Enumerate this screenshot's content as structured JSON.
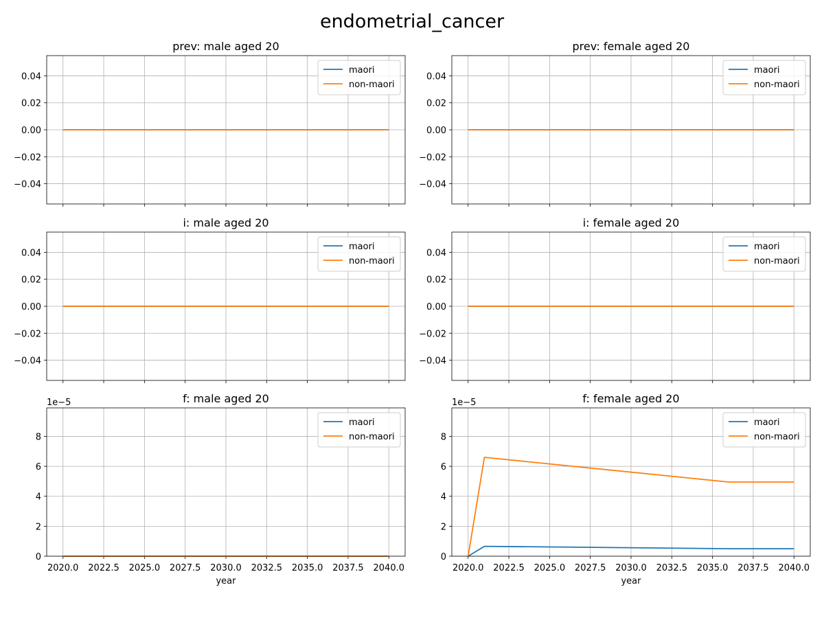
{
  "figure": {
    "title": "endometrial_cancer"
  },
  "colors": {
    "maori": "#1f77b4",
    "non_maori": "#ff7f0e",
    "grid": "#b0b0b0",
    "axes": "#000000",
    "background": "#ffffff"
  },
  "chart_data": [
    {
      "type": "line",
      "title": "prev: male aged 20",
      "xlabel": "",
      "ylabel": "",
      "xlim": [
        2019,
        2041
      ],
      "ylim": [
        -0.055,
        0.055
      ],
      "yticks": [
        -0.04,
        -0.02,
        0.0,
        0.02,
        0.04
      ],
      "ytick_labels": [
        "−0.04",
        "−0.02",
        "0.00",
        "0.02",
        "0.04"
      ],
      "xticks": [
        2020.0,
        2022.5,
        2025.0,
        2027.5,
        2030.0,
        2032.5,
        2035.0,
        2037.5,
        2040.0
      ],
      "xtick_labels": [],
      "y_offset_label": "",
      "grid": true,
      "legend": "upper right",
      "series": [
        {
          "name": "maori",
          "x": [
            2020,
            2040
          ],
          "y": [
            0,
            0
          ]
        },
        {
          "name": "non-maori",
          "x": [
            2020,
            2040
          ],
          "y": [
            0,
            0
          ]
        }
      ]
    },
    {
      "type": "line",
      "title": "prev: female aged 20",
      "xlabel": "",
      "ylabel": "",
      "xlim": [
        2019,
        2041
      ],
      "ylim": [
        -0.055,
        0.055
      ],
      "yticks": [
        -0.04,
        -0.02,
        0.0,
        0.02,
        0.04
      ],
      "ytick_labels": [
        "−0.04",
        "−0.02",
        "0.00",
        "0.02",
        "0.04"
      ],
      "xticks": [
        2020.0,
        2022.5,
        2025.0,
        2027.5,
        2030.0,
        2032.5,
        2035.0,
        2037.5,
        2040.0
      ],
      "xtick_labels": [],
      "y_offset_label": "",
      "grid": true,
      "legend": "upper right",
      "series": [
        {
          "name": "maori",
          "x": [
            2020,
            2040
          ],
          "y": [
            0,
            0
          ]
        },
        {
          "name": "non-maori",
          "x": [
            2020,
            2040
          ],
          "y": [
            0,
            0
          ]
        }
      ]
    },
    {
      "type": "line",
      "title": "i: male aged 20",
      "xlabel": "",
      "ylabel": "",
      "xlim": [
        2019,
        2041
      ],
      "ylim": [
        -0.055,
        0.055
      ],
      "yticks": [
        -0.04,
        -0.02,
        0.0,
        0.02,
        0.04
      ],
      "ytick_labels": [
        "−0.04",
        "−0.02",
        "0.00",
        "0.02",
        "0.04"
      ],
      "xticks": [
        2020.0,
        2022.5,
        2025.0,
        2027.5,
        2030.0,
        2032.5,
        2035.0,
        2037.5,
        2040.0
      ],
      "xtick_labels": [],
      "y_offset_label": "",
      "grid": true,
      "legend": "upper right",
      "series": [
        {
          "name": "maori",
          "x": [
            2020,
            2040
          ],
          "y": [
            0,
            0
          ]
        },
        {
          "name": "non-maori",
          "x": [
            2020,
            2040
          ],
          "y": [
            0,
            0
          ]
        }
      ]
    },
    {
      "type": "line",
      "title": "i: female aged 20",
      "xlabel": "",
      "ylabel": "",
      "xlim": [
        2019,
        2041
      ],
      "ylim": [
        -0.055,
        0.055
      ],
      "yticks": [
        -0.04,
        -0.02,
        0.0,
        0.02,
        0.04
      ],
      "ytick_labels": [
        "−0.04",
        "−0.02",
        "0.00",
        "0.02",
        "0.04"
      ],
      "xticks": [
        2020.0,
        2022.5,
        2025.0,
        2027.5,
        2030.0,
        2032.5,
        2035.0,
        2037.5,
        2040.0
      ],
      "xtick_labels": [],
      "y_offset_label": "",
      "grid": true,
      "legend": "upper right",
      "series": [
        {
          "name": "maori",
          "x": [
            2020,
            2040
          ],
          "y": [
            0,
            0
          ]
        },
        {
          "name": "non-maori",
          "x": [
            2020,
            2040
          ],
          "y": [
            0,
            0
          ]
        }
      ]
    },
    {
      "type": "line",
      "title": "f: male aged 20",
      "xlabel": "year",
      "ylabel": "",
      "xlim": [
        2019,
        2041
      ],
      "ylim": [
        0,
        9.9
      ],
      "yticks": [
        0,
        2,
        4,
        6,
        8
      ],
      "ytick_labels": [
        "0",
        "2",
        "4",
        "6",
        "8"
      ],
      "xticks": [
        2020.0,
        2022.5,
        2025.0,
        2027.5,
        2030.0,
        2032.5,
        2035.0,
        2037.5,
        2040.0
      ],
      "xtick_labels": [
        "2020.0",
        "2022.5",
        "2025.0",
        "2027.5",
        "2030.0",
        "2032.5",
        "2035.0",
        "2037.5",
        "2040.0"
      ],
      "y_offset_label": "1e−5",
      "grid": true,
      "legend": "upper right",
      "series": [
        {
          "name": "maori",
          "x": [
            2020,
            2040
          ],
          "y": [
            0,
            0
          ]
        },
        {
          "name": "non-maori",
          "x": [
            2020,
            2040
          ],
          "y": [
            0,
            0
          ]
        }
      ]
    },
    {
      "type": "line",
      "title": "f: female aged 20",
      "xlabel": "year",
      "ylabel": "",
      "xlim": [
        2019,
        2041
      ],
      "ylim": [
        0,
        9.9
      ],
      "yticks": [
        0,
        2,
        4,
        6,
        8
      ],
      "ytick_labels": [
        "0",
        "2",
        "4",
        "6",
        "8"
      ],
      "xticks": [
        2020.0,
        2022.5,
        2025.0,
        2027.5,
        2030.0,
        2032.5,
        2035.0,
        2037.5,
        2040.0
      ],
      "xtick_labels": [
        "2020.0",
        "2022.5",
        "2025.0",
        "2027.5",
        "2030.0",
        "2032.5",
        "2035.0",
        "2037.5",
        "2040.0"
      ],
      "y_offset_label": "1e−5",
      "grid": true,
      "legend": "upper right",
      "series": [
        {
          "name": "maori",
          "x": [
            2020,
            2021,
            2036,
            2040
          ],
          "y": [
            0,
            0.66,
            0.5,
            0.5
          ]
        },
        {
          "name": "non-maori",
          "x": [
            2020,
            2021,
            2036,
            2040
          ],
          "y": [
            0,
            6.6,
            4.95,
            4.95
          ]
        }
      ]
    }
  ]
}
